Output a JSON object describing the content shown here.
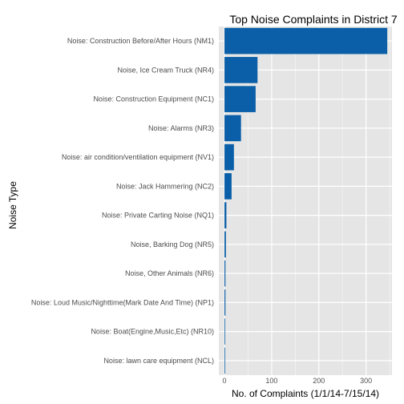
{
  "chart_data": {
    "type": "bar",
    "orientation": "horizontal",
    "title": "Top Noise Complaints in District 7",
    "xlabel": "No. of Complaints (1/1/14-7/15/14)",
    "ylabel": "Noise Type",
    "xlim": [
      -12,
      355
    ],
    "xticks": [
      0,
      100,
      200,
      300
    ],
    "grid": true,
    "bar_color": "#0a5fa8",
    "panel_color": "#e5e5e5",
    "grid_color": "#ffffff",
    "categories": [
      "Noise: Construction Before/After Hours (NM1)",
      "Noise, Ice Cream Truck (NR4)",
      "Noise: Construction Equipment (NC1)",
      "Noise: Alarms (NR3)",
      "Noise: air condition/ventilation equipment (NV1)",
      "Noise: Jack Hammering (NC2)",
      "Noise: Private Carting Noise (NQ1)",
      "Noise, Barking Dog (NR5)",
      "Noise, Other Animals (NR6)",
      "Noise: Loud Music/Nighttime(Mark Date And Time) (NP1)",
      "Noise: Boat(Engine,Music,Etc) (NR10)",
      "Noise:  lawn care equipment (NCL)"
    ],
    "values": [
      345,
      70,
      66,
      35,
      20,
      15,
      4,
      3,
      2,
      2,
      1,
      1
    ]
  }
}
